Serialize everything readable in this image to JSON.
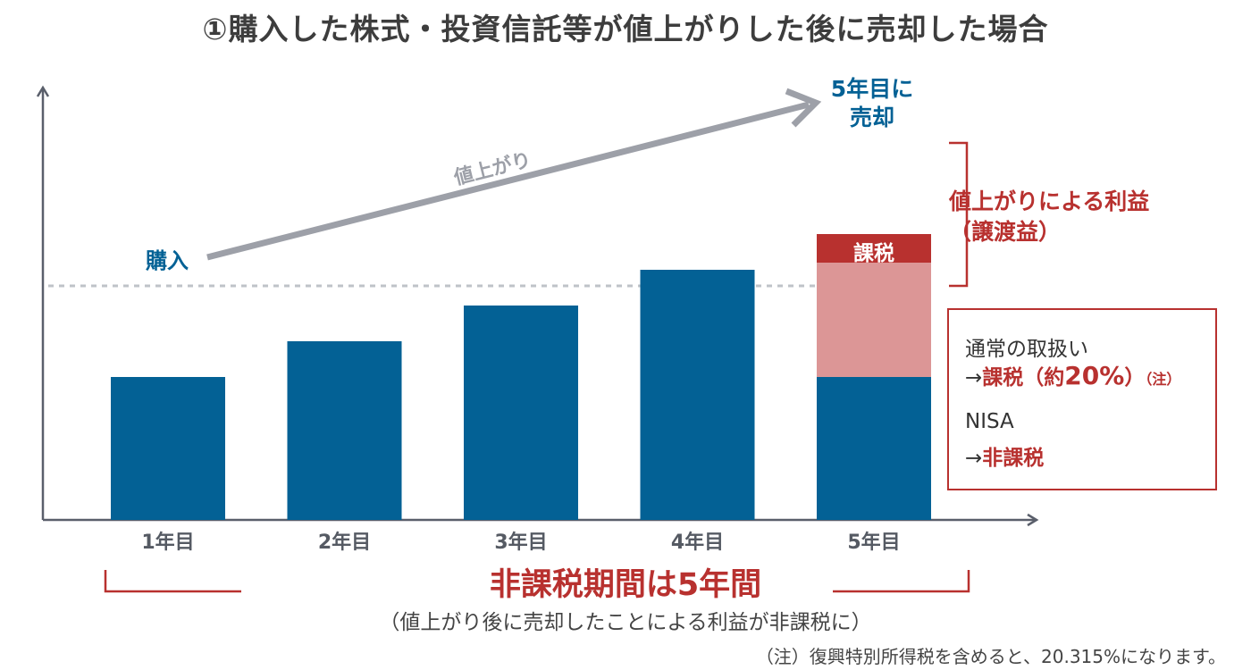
{
  "title": "①購入した株式・投資信託等が値上がりした後に売却した場合",
  "chart_data": {
    "type": "bar",
    "categories": [
      "1年目",
      "2年目",
      "3年目",
      "4年目",
      "5年目"
    ],
    "values": [
      100,
      125,
      150,
      175,
      200
    ],
    "base_value": 100,
    "ylim": [
      0,
      200
    ],
    "grid": false,
    "xlabel": "",
    "ylabel": "",
    "annotations": {
      "purchase_label": "購入",
      "rise_label": "値上がり",
      "sell_label_line1": "5年目に",
      "sell_label_line2": "売却",
      "tax_label": "課税",
      "gain_label_line1": "値上がりによる利益",
      "gain_label_line2": "（譲渡益）",
      "tax_value": 180
    }
  },
  "note_box": {
    "normal_label": "通常の取扱い",
    "arrow": "→",
    "normal_result_tax": "課税",
    "normal_result_paren_open": "（約",
    "normal_result_rate": "20%",
    "normal_result_paren_close": "）",
    "normal_result_note": "（注）",
    "nisa_label": "NISA",
    "nisa_result": "非課税"
  },
  "period": {
    "headline": "非課税期間は5年間",
    "sub": "（値上がり後に売却したことによる利益が非課税に）"
  },
  "footnote": "（注）復興特別所得税を含めると、20.315%になります。",
  "colors": {
    "bar": "#036195",
    "gain": "#dc9696",
    "tax": "#b8312f",
    "accent_red": "#b8312f",
    "axis": "#5a5f6b",
    "arrow": "#9da0a8",
    "dotted": "#bfc3c8",
    "title": "#3d3d3d"
  }
}
